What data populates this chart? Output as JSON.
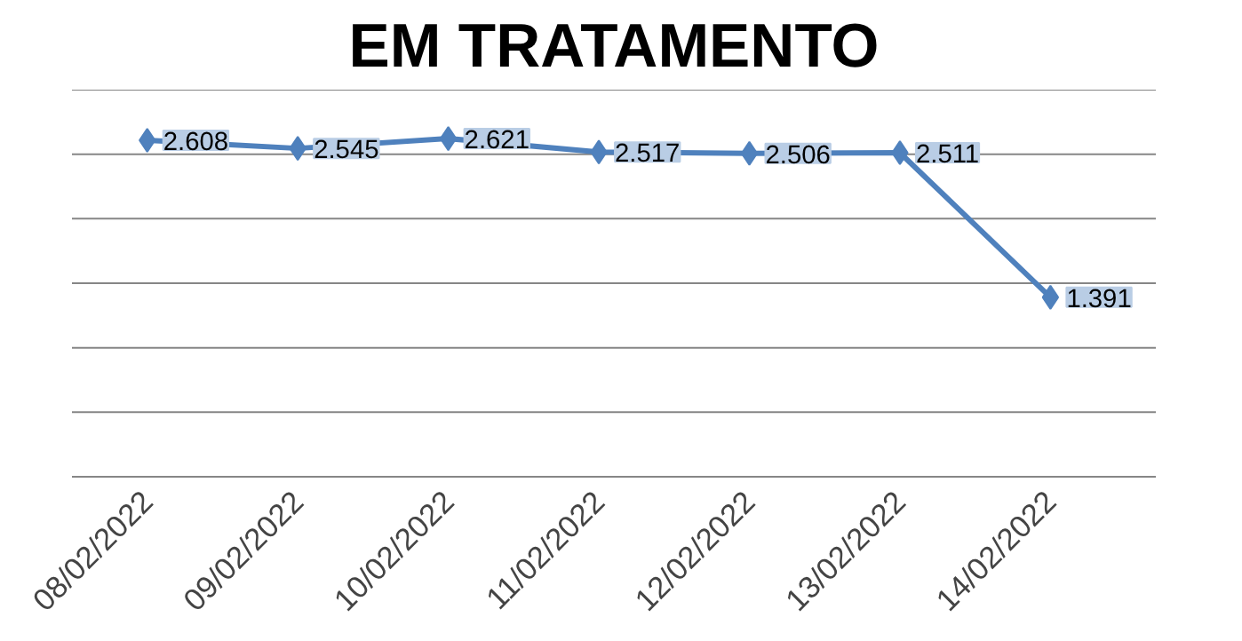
{
  "chart_data": {
    "type": "line",
    "title": "EM TRATAMENTO",
    "categories": [
      "08/02/2022",
      "09/02/2022",
      "10/02/2022",
      "11/02/2022",
      "12/02/2022",
      "13/02/2022",
      "14/02/2022"
    ],
    "series": [
      {
        "color": "#4f81bd",
        "values": [
          2608,
          2545,
          2621,
          2517,
          2506,
          2511,
          1391
        ],
        "value_labels": [
          "2.608",
          "2.545",
          "2.621",
          "2.517",
          "2.506",
          "2.511",
          "1.391"
        ]
      }
    ],
    "ylim": [
      0,
      3000
    ],
    "yticks": [
      {
        "value": 0,
        "label": null
      },
      {
        "value": 500,
        "label": null
      },
      {
        "value": 1000,
        "label": null
      },
      {
        "value": 1500,
        "label": null
      },
      {
        "value": 2000,
        "label": null
      },
      {
        "value": 2500,
        "label": null
      },
      {
        "value": 3000,
        "label": null
      }
    ],
    "grid": "y",
    "marker": "diamond",
    "line_style": "solid",
    "tick_labels": "x"
  }
}
